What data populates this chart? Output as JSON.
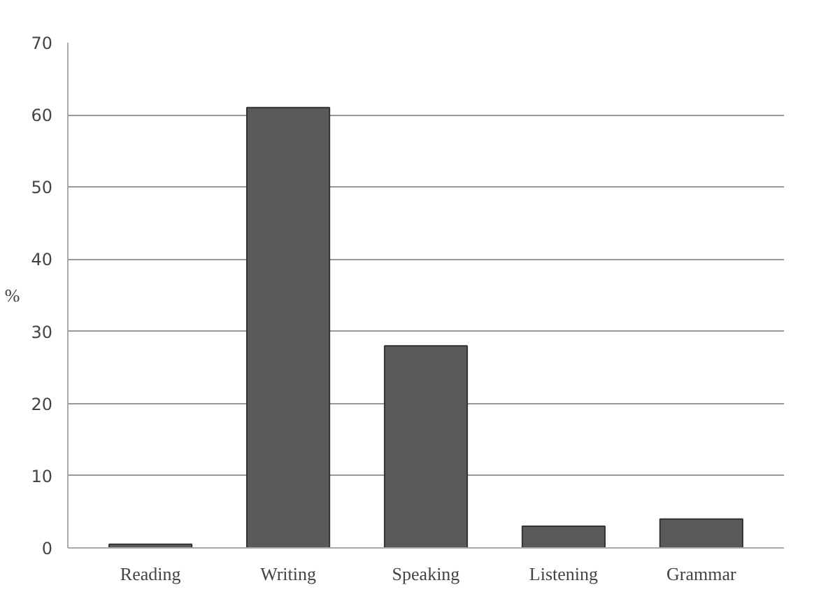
{
  "chart_data": {
    "type": "bar",
    "ylabel": "%",
    "categories": [
      "Reading",
      "Writing",
      "Speaking",
      "Listening",
      "Grammar"
    ],
    "values": [
      0.5,
      61,
      28,
      3,
      4
    ],
    "color": "#5a5a5a",
    "ylim": [
      0,
      70
    ],
    "yticks": [
      0,
      10,
      20,
      30,
      40,
      50,
      60,
      70
    ],
    "grid": "y"
  }
}
